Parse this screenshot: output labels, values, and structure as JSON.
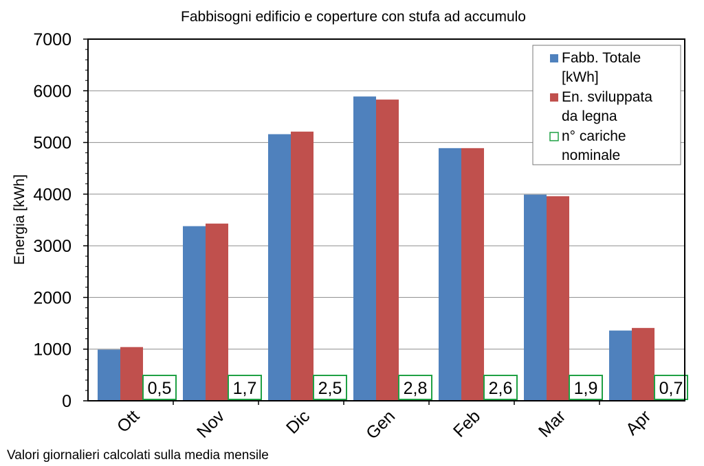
{
  "footer_note": "Valori giornalieri calcolati sulla media mensile",
  "chart_data": {
    "type": "bar",
    "title": "Fabbisogni edificio e coperture con stufa ad accumulo",
    "xlabel": "",
    "ylabel": "Energia [kWh]",
    "ylim": [
      0,
      7000
    ],
    "yticks": [
      "0",
      "1000",
      "2000",
      "3000",
      "4000",
      "5000",
      "6000",
      "7000"
    ],
    "grid": true,
    "legend_position": "top-right",
    "categories": [
      "Ott",
      "Nov",
      "Dic",
      "Gen",
      "Feb",
      "Mar",
      "Apr"
    ],
    "series": [
      {
        "name": "Fabb. Totale [kWh]",
        "color": "#4f81bd",
        "values": [
          990,
          3380,
          5160,
          5890,
          4890,
          3990,
          1360
        ]
      },
      {
        "name": "En. sviluppata da legna",
        "color": "#c0504d",
        "values": [
          1040,
          3430,
          5210,
          5830,
          4890,
          3960,
          1410
        ]
      }
    ],
    "cariche": {
      "name": "n° cariche nominale",
      "color": "#1fa044",
      "labels": [
        "0,5",
        "1,7",
        "2,5",
        "2,8",
        "2,6",
        "1,9",
        "0,7"
      ]
    },
    "legend": {
      "lines": [
        [
          "Fabb. Totale",
          "[kWh]"
        ],
        [
          "En. sviluppata",
          "da legna"
        ],
        [
          "n° cariche",
          "nominale"
        ]
      ]
    }
  }
}
